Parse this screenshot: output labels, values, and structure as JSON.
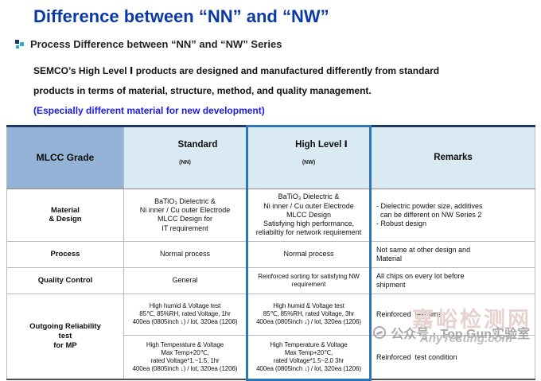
{
  "page": {
    "title": "Difference between “NN” and “NW”",
    "section_heading": "Process Difference between “NN” and “NW” Series",
    "intro_text": "SEMCO’s High Level Ⅰ products are designed and manufactured differently from standard\nproducts in terms of material, structure, method, and quality management.",
    "intro_highlight": "(Especially different material for new development)"
  },
  "table": {
    "headers": {
      "grade": "MLCC Grade",
      "standard": {
        "label": "Standard",
        "sub": "(NN)"
      },
      "high_level": {
        "label": "High Level Ⅰ",
        "sub": "(NW)"
      },
      "remarks": "Remarks"
    },
    "rows": {
      "material": {
        "label": "Material\n& Design",
        "standard": "BaTiO₃ Dielectric &\nNi inner / Cu outer Electrode\nMLCC Design for\nIT requirement",
        "high_level": "BaTiO₃ Dielectric &\nNi inner / Cu outer Electrode\nMLCC Design\nSatisfying high performance,\nreliabiltiy for network requirement",
        "remarks": "- Dielectric powder size, additives\n  can be different on NW Series 2\n- Robust design"
      },
      "process": {
        "label": "Process",
        "standard": "Normal process",
        "high_level": "Normal process",
        "remarks": "Not same at other design and\nMaterial"
      },
      "quality": {
        "label": "Quality Control",
        "standard": "General",
        "high_level": "Reinforced sorting for satisfying NW\nrequirement",
        "remarks": "All chips on every lot before\nshipment"
      },
      "reliability": {
        "label": "Outgoing Reliability\ntest\nfor MP",
        "humid": {
          "standard": "High humid & Voltage test\n85℃, 85%RH, rated Voltage, 1hr\n400ea (0805inch ↓) / lot, 320ea (1206)",
          "high_level": "High humid & Voltage test\n85℃, 85%RH, rated Voltage, 3hr\n400ea (0805inch ↓) / lot, 320ea (1206)",
          "remarks": "Reinforced  test time"
        },
        "temperature": {
          "standard": "High Temperature & Voltage\nMax Temp+20℃,\nrated Voltage*1.~1.5, 1hr\n400ea (0805inch ↓) / lot, 320ea (1206)",
          "high_level": "High Temperature & Voltage\nMax Temp+20℃,\nrated Voltage*1.5~2.0 3hr\n400ea (0805inch ↓) / lot, 320ea (1206)",
          "remarks": "Reinforced  test condition"
        }
      }
    }
  },
  "watermark": {
    "site_name": "嘉峪检测网",
    "account_line": "公众号 · Top Gun实验室",
    "domain": "AnyTesting.com"
  },
  "colors": {
    "title_blue": "#0B3AA6",
    "accent_blue": "#1A1AE8",
    "header_col1_bg": "#95B3D7",
    "header_bg": "#DAEAF3",
    "highlight_border": "#2E75B6",
    "grid": "#B9B9B9",
    "dark_top": "#1F3864",
    "text_dark": "#1A1A1A",
    "bullet_navy": "#17375E",
    "bullet_teal": "#2FAECB"
  }
}
